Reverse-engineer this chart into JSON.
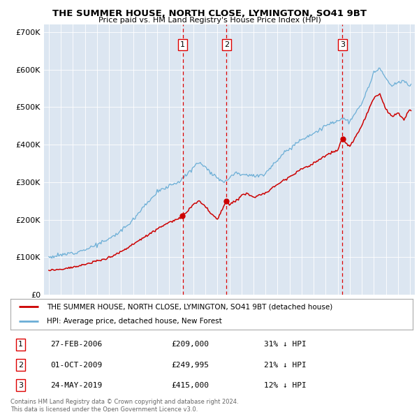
{
  "title": "THE SUMMER HOUSE, NORTH CLOSE, LYMINGTON, SO41 9BT",
  "subtitle": "Price paid vs. HM Land Registry's House Price Index (HPI)",
  "hpi_legend": "HPI: Average price, detached house, New Forest",
  "property_legend": "THE SUMMER HOUSE, NORTH CLOSE, LYMINGTON, SO41 9BT (detached house)",
  "copyright": "Contains HM Land Registry data © Crown copyright and database right 2024.\nThis data is licensed under the Open Government Licence v3.0.",
  "hpi_color": "#6baed6",
  "property_color": "#cc0000",
  "vline_color": "#dd0000",
  "plot_bg_color": "#dce6f1",
  "transactions": [
    {
      "num": 1,
      "date_str": "27-FEB-2006",
      "date_x": 2006.12,
      "price": 209000,
      "price_str": "£209,000",
      "pct": "31%"
    },
    {
      "num": 2,
      "date_str": "01-OCT-2009",
      "date_x": 2009.75,
      "price": 249995,
      "price_str": "£249,995",
      "pct": "21%"
    },
    {
      "num": 3,
      "date_str": "24-MAY-2019",
      "date_x": 2019.38,
      "price": 415000,
      "price_str": "£415,000",
      "pct": "12%"
    }
  ],
  "ylim": [
    0,
    720000
  ],
  "xlim": [
    1994.6,
    2025.4
  ],
  "yticks": [
    0,
    100000,
    200000,
    300000,
    400000,
    500000,
    600000,
    700000
  ],
  "xticks": [
    1995,
    1996,
    1997,
    1998,
    1999,
    2000,
    2001,
    2002,
    2003,
    2004,
    2005,
    2006,
    2007,
    2008,
    2009,
    2010,
    2011,
    2012,
    2013,
    2014,
    2015,
    2016,
    2017,
    2018,
    2019,
    2020,
    2021,
    2022,
    2023,
    2024,
    2025
  ]
}
